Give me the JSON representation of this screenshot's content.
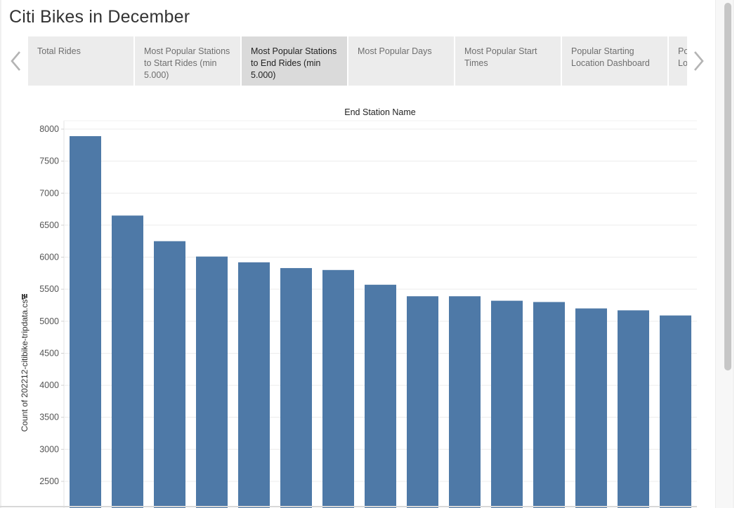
{
  "story": {
    "title": "Citi Bikes in December"
  },
  "tabs": [
    {
      "label": "Total Rides",
      "active": false
    },
    {
      "label": "Most Popular Stations to Start Rides (min 5.000)",
      "active": false
    },
    {
      "label": "Most Popular Stations to End Rides (min 5.000)",
      "active": true
    },
    {
      "label": "Most Popular Days",
      "active": false
    },
    {
      "label": "Most Popular Start Times",
      "active": false
    },
    {
      "label": "Popular Starting Location Dashboard",
      "active": false
    },
    {
      "label": "Po Lo",
      "active": false
    }
  ],
  "icons": {
    "prev": "chevron-left-icon",
    "next": "chevron-right-icon",
    "sort": "sort-icon"
  },
  "colors": {
    "bar": "#4e79a7",
    "grid": "#ececec",
    "tab_bg": "#ececec",
    "tab_active_bg": "#dadada"
  },
  "chart_data": {
    "type": "bar",
    "title": "",
    "xlabel": "End Station Name",
    "ylabel": "Count of 202212-citibike-tripdata.csv",
    "ylim": [
      2300,
      8180
    ],
    "yticks": [
      2500,
      3000,
      3500,
      4000,
      4500,
      5000,
      5500,
      6000,
      6500,
      7000,
      7500,
      8000
    ],
    "grid": true,
    "values": [
      7890,
      6650,
      6250,
      6010,
      5920,
      5830,
      5800,
      5570,
      5390,
      5390,
      5320,
      5300,
      5200,
      5170,
      5090
    ]
  }
}
